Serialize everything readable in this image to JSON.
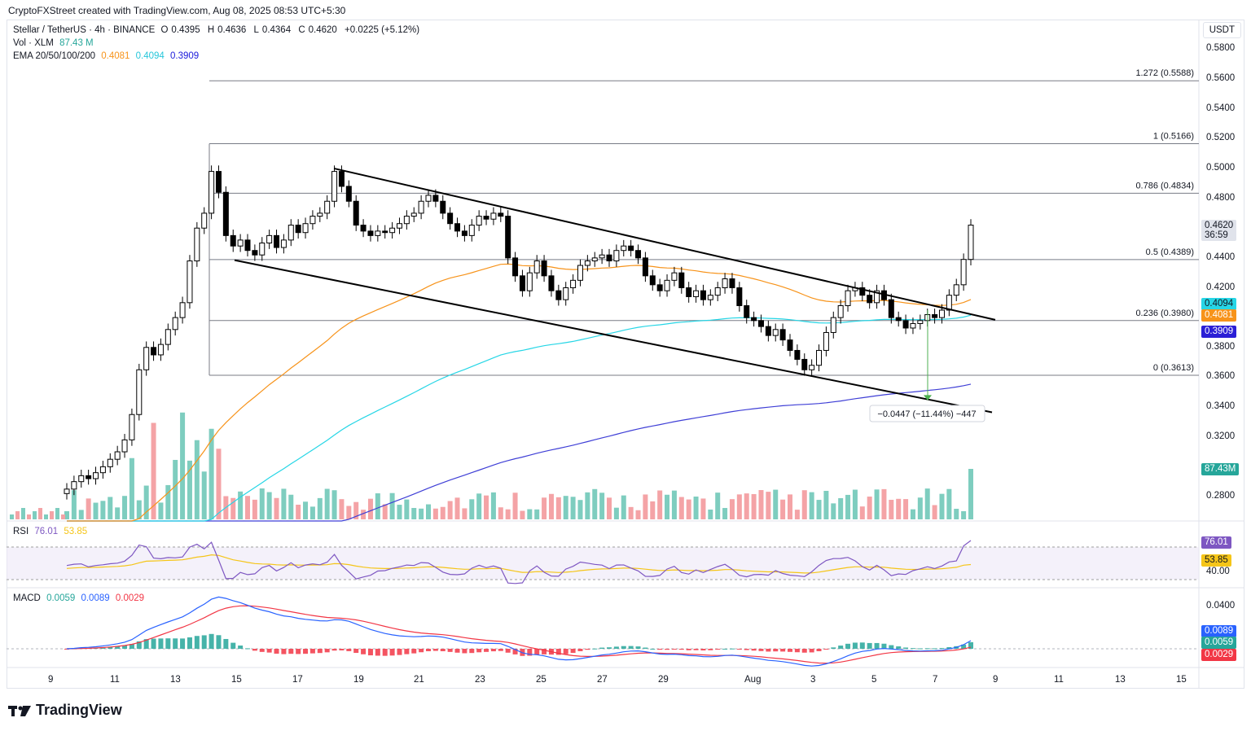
{
  "header": {
    "attribution": "CryptoFXStreet created with TradingView.com, Aug 08, 2025 08:53 UTC+5:30"
  },
  "legend": {
    "pair": "Stellar / TetherUS · 4h · BINANCE",
    "o_label": "O",
    "o": "0.4395",
    "h_label": "H",
    "h": "0.4636",
    "l_label": "L",
    "l": "0.4364",
    "c_label": "C",
    "c": "0.4620",
    "change": "+0.0225 (+5.12%)",
    "vol_label": "Vol · XLM",
    "vol": "87.43 M",
    "ema_label": "EMA 20/50/100/200",
    "ema50": "0.4081",
    "ema100": "0.4094",
    "ema200": "0.3909"
  },
  "currency_button": "USDT",
  "price_axis": [
    "0.5800",
    "0.5600",
    "0.5400",
    "0.5200",
    "0.5000",
    "0.4800",
    "0.4400",
    "0.4200",
    "0.3800",
    "0.3600",
    "0.3400",
    "0.3200",
    "0.2800"
  ],
  "price_tags": {
    "last": "0.4620",
    "countdown": "36:59",
    "ema100": "0.4094",
    "ema50": "0.4081",
    "ema200": "0.3909",
    "volume": "87.43M"
  },
  "fib_levels": [
    {
      "label": "1.272 (0.5588)",
      "price": 0.5588
    },
    {
      "label": "1 (0.5166)",
      "price": 0.5166
    },
    {
      "label": "0.786 (0.4834)",
      "price": 0.4834
    },
    {
      "label": "0.5 (0.4389)",
      "price": 0.4389
    },
    {
      "label": "0.236 (0.3980)",
      "price": 0.398
    },
    {
      "label": "0 (0.3613)",
      "price": 0.3613
    }
  ],
  "measure_label": "−0.0447 (−11.44%) −447",
  "rsi": {
    "label": "RSI",
    "value": "76.01",
    "ma": "53.85",
    "axis": [
      "40.00"
    ]
  },
  "macd": {
    "label": "MACD",
    "hist": "0.0059",
    "macd": "0.0089",
    "signal": "0.0029",
    "axis": [
      "0.0400"
    ]
  },
  "time_axis": [
    "9",
    "11",
    "13",
    "15",
    "17",
    "19",
    "21",
    "23",
    "25",
    "27",
    "29",
    "Aug",
    "3",
    "5",
    "7",
    "9",
    "11",
    "13",
    "15"
  ],
  "brand": "TradingView",
  "colors": {
    "up": "#ffffff",
    "down": "#000000",
    "ema50": "#f7931a",
    "ema100": "#26d6e6",
    "ema200": "#3f3fd6",
    "vol_up": "#7ecdbf",
    "vol_down": "#f4a3a6",
    "rsi": "#7e57c2",
    "rsi_ma": "#f5c518",
    "macd": "#2962ff",
    "signal": "#f23645"
  },
  "chart_data": {
    "type": "candlestick",
    "title": "Stellar / TetherUS · 4h · BINANCE",
    "ylim": [
      0.265,
      0.59
    ],
    "close_series_approx": [
      0.285,
      0.29,
      0.294,
      0.292,
      0.296,
      0.3,
      0.305,
      0.31,
      0.318,
      0.335,
      0.365,
      0.38,
      0.375,
      0.382,
      0.392,
      0.4,
      0.41,
      0.438,
      0.46,
      0.47,
      0.498,
      0.484,
      0.455,
      0.448,
      0.452,
      0.445,
      0.442,
      0.45,
      0.455,
      0.447,
      0.452,
      0.462,
      0.457,
      0.463,
      0.468,
      0.47,
      0.478,
      0.498,
      0.488,
      0.478,
      0.462,
      0.458,
      0.455,
      0.458,
      0.457,
      0.46,
      0.463,
      0.468,
      0.47,
      0.478,
      0.482,
      0.478,
      0.47,
      0.463,
      0.458,
      0.455,
      0.462,
      0.468,
      0.466,
      0.47,
      0.468,
      0.44,
      0.428,
      0.418,
      0.43,
      0.438,
      0.428,
      0.418,
      0.412,
      0.42,
      0.425,
      0.435,
      0.438,
      0.44,
      0.442,
      0.438,
      0.445,
      0.448,
      0.445,
      0.44,
      0.428,
      0.422,
      0.418,
      0.425,
      0.43,
      0.42,
      0.414,
      0.418,
      0.412,
      0.415,
      0.42,
      0.426,
      0.42,
      0.408,
      0.4,
      0.398,
      0.394,
      0.388,
      0.392,
      0.385,
      0.378,
      0.372,
      0.365,
      0.368,
      0.378,
      0.39,
      0.4,
      0.408,
      0.418,
      0.42,
      0.415,
      0.41,
      0.418,
      0.412,
      0.4,
      0.398,
      0.393,
      0.396,
      0.398,
      0.402,
      0.4,
      0.405,
      0.415,
      0.422,
      0.439,
      0.462
    ]
  }
}
